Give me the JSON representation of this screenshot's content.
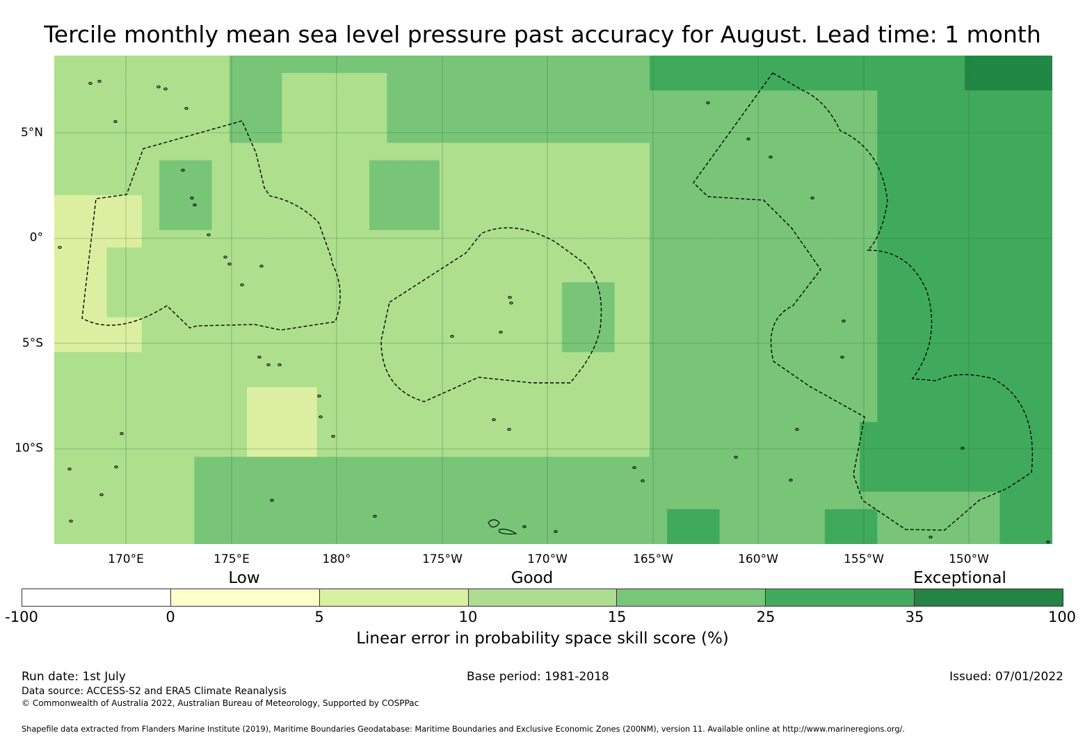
{
  "title": "Tercile monthly mean sea level pressure past accuracy for August. Lead time: 1 month",
  "map": {
    "latitude_labels": [
      "5°N",
      "0°",
      "5°S",
      "10°S"
    ],
    "longitude_labels": [
      "170°E",
      "175°E",
      "180°",
      "175°W",
      "170°W",
      "165°W",
      "160°W",
      "155°W",
      "150°W"
    ],
    "cell_colors": {
      "0-5": "#dcefa1",
      "5-10": "#addf8d",
      "10-15": "#78c578",
      "15-25": "#78c578",
      "25-35": "#40aa5c",
      "35-100": "#218744"
    },
    "boundary_style": "dashed",
    "coastline_color": "#000000"
  },
  "colorbar": {
    "category_labels": [
      "Low",
      "Good",
      "Exceptional"
    ],
    "tick_labels": [
      "-100",
      "0",
      "5",
      "10",
      "15",
      "25",
      "35",
      "100"
    ],
    "colors": [
      "#ffffff",
      "#ffffcc",
      "#d9f0a3",
      "#addd8e",
      "#78c679",
      "#41ab5d",
      "#238443"
    ],
    "title": "Linear error in probability space skill score (%)"
  },
  "footer": {
    "run_date": "Run date: 1st July",
    "base_period": "Base period: 1981-2018",
    "issued": "Issued: 07/01/2022",
    "data_source": "Data source: ACCESS-S2 and ERA5 Climate Reanalysis",
    "copyright": "© Commonwealth of Australia 2022, Australian Bureau of Meteorology, Supported by COSPPac",
    "shapefile": "Shapefile data extracted from Flanders Marine Institute (2019), Maritime Boundaries Geodatabase: Maritime Boundaries and Exclusive Economic Zones (200NM), version 11. Available online at http://www.marineregions.org/."
  }
}
